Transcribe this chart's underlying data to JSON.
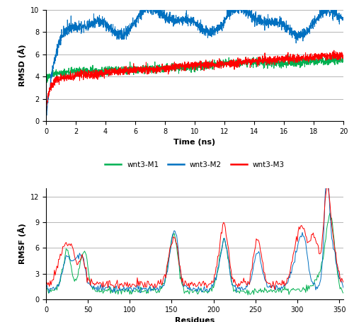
{
  "rmsd_time_ns": 20.0,
  "rmsd_points": 2000,
  "rmsf_residues": 355,
  "colors": {
    "M1": "#00b050",
    "M2": "#0070c0",
    "M3": "#ff0000"
  },
  "rmsd_ylim": [
    0,
    10
  ],
  "rmsd_yticks": [
    0,
    2,
    4,
    6,
    8,
    10
  ],
  "rmsd_xticks": [
    0,
    2,
    4,
    6,
    8,
    10,
    12,
    14,
    16,
    18,
    20
  ],
  "rmsf_ylim": [
    0,
    13
  ],
  "rmsf_yticks": [
    0,
    3,
    6,
    9,
    12
  ],
  "rmsf_xticks": [
    0,
    50,
    100,
    150,
    200,
    250,
    300,
    350
  ],
  "xlabel_rmsd": "Time (ns)",
  "ylabel_rmsd": "RMSD (Å)",
  "xlabel_rmsf": "Residues",
  "ylabel_rmsf": "RMSF (Å)",
  "legend_labels": [
    "wnt3-M1",
    "wnt3-M2",
    "wnt3-M3"
  ]
}
